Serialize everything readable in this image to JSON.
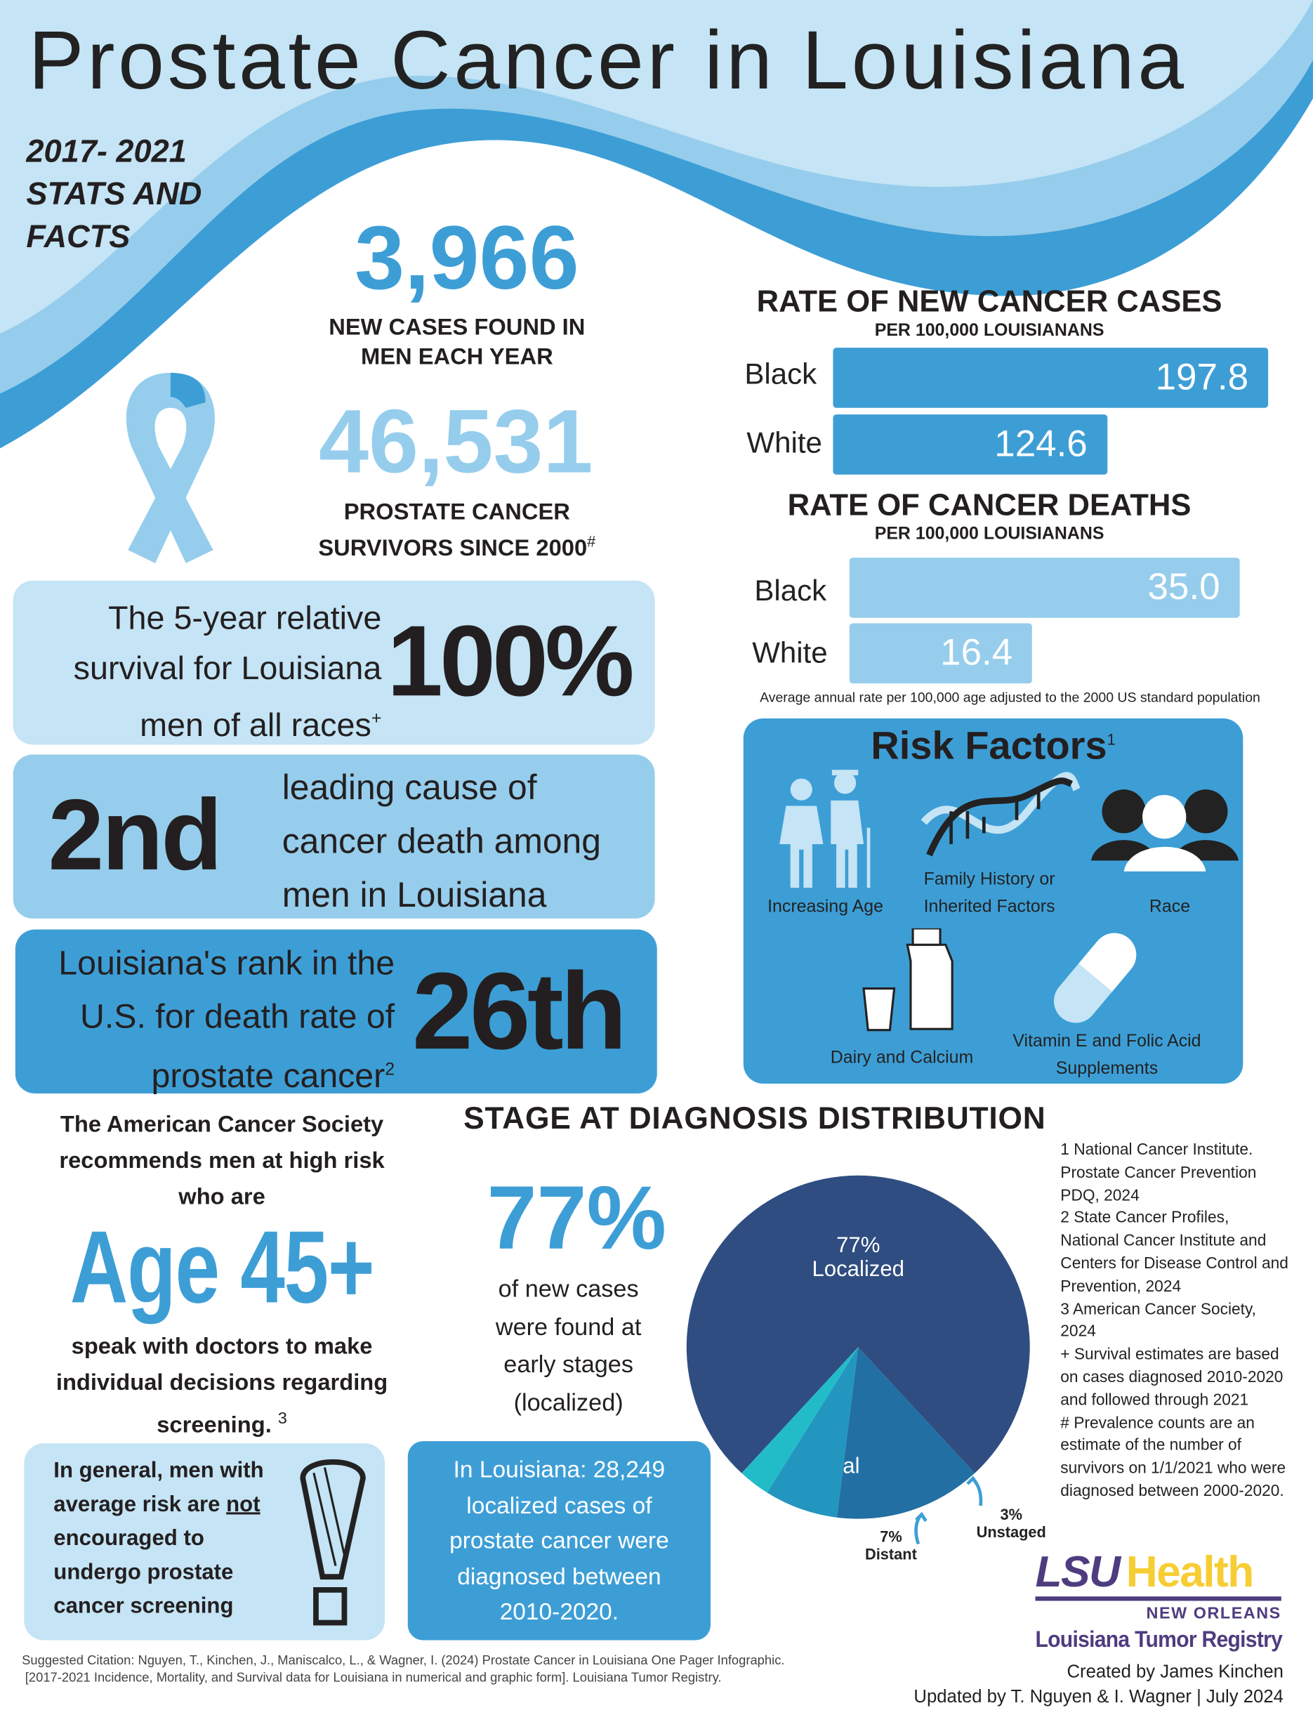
{
  "title": "Prostate Cancer in Louisiana",
  "subtitle_lines": [
    "2017- 2021",
    "STATS AND",
    "FACTS"
  ],
  "new_cases": {
    "value": "3,966",
    "label_lines": [
      "NEW CASES FOUND IN",
      "MEN EACH YEAR"
    ]
  },
  "survivors": {
    "value": "46,531",
    "label_lines": [
      "PROSTATE  CANCER",
      "SURVIVORS SINCE 2000"
    ],
    "mark": "#"
  },
  "rates_new": {
    "title": "RATE OF NEW CANCER CASES",
    "subtitle": "PER 100,000 LOUISIANANS",
    "bars": [
      {
        "label": "Black",
        "value": "197.8"
      },
      {
        "label": "White",
        "value": "124.6"
      }
    ],
    "max": "197.8"
  },
  "rates_death": {
    "title": "RATE OF CANCER DEATHS",
    "subtitle": "PER 100,000 LOUISIANANS",
    "bars": [
      {
        "label": "Black",
        "value": "35.0"
      },
      {
        "label": "White",
        "value": "16.4"
      }
    ],
    "max": "35.0"
  },
  "rate_note": "Average annual rate per 100,000 age adjusted to the 2000 US standard population",
  "survival": {
    "lines": [
      "The 5-year relative",
      "survival for Louisiana",
      "men of all races"
    ],
    "mark": "+",
    "value": "100%"
  },
  "leading": {
    "value": "2nd",
    "lines": [
      "leading cause of",
      "cancer death among",
      "men in Louisiana"
    ]
  },
  "rank": {
    "lines": [
      "Louisiana's rank in the",
      "U.S. for death rate of",
      "prostate cancer"
    ],
    "mark": "2",
    "value": "26th"
  },
  "risk": {
    "title": "Risk Factors",
    "mark": "1",
    "items": [
      {
        "label": "Increasing Age",
        "icon": "elderly-couple-icon"
      },
      {
        "label": "Family History or Inherited Factors",
        "icon": "dna-icon"
      },
      {
        "label": "Race",
        "icon": "people-icon"
      },
      {
        "label": "Dairy and Calcium",
        "icon": "milk-icon"
      },
      {
        "label": "Vitamin E and Folic Acid Supplements",
        "icon": "pill-icon"
      }
    ]
  },
  "acs": {
    "intro_lines": [
      "The American Cancer Society",
      "recommends men at high risk",
      "who are"
    ],
    "age": "Age 45+",
    "outro_lines": [
      "speak with doctors to make",
      "individual decisions regarding",
      "screening."
    ],
    "mark": "3"
  },
  "average_risk": {
    "lines": [
      "In general, men with",
      "average risk are",
      "not",
      "encouraged to",
      "undergo prostate",
      "cancer screening"
    ]
  },
  "localized_box": {
    "lines": [
      "In Louisiana: 28,249",
      "localized cases of",
      "prostate cancer were",
      "diagnosed between",
      "2010-2020."
    ]
  },
  "stage": {
    "title": "STAGE AT DIAGNOSIS DISTRIBUTION",
    "big": "77%",
    "lines": [
      "of new cases",
      "were found at",
      "early stages",
      "(localized)"
    ]
  },
  "chart_data": {
    "type": "pie",
    "title": "STAGE AT DIAGNOSIS DISTRIBUTION",
    "slices": [
      {
        "label": "Localized",
        "pct": "77%",
        "value": 77,
        "color": "#2f4d80"
      },
      {
        "label": "Regional",
        "pct": "14%",
        "value": 14,
        "color": "#226fa3"
      },
      {
        "label": "Distant",
        "pct": "7%",
        "value": 7,
        "color": "#2396c0"
      },
      {
        "label": "Unstaged",
        "pct": "3%",
        "value": 3,
        "color": "#22bcc9"
      }
    ]
  },
  "references": [
    "1 National Cancer Institute. Prostate Cancer Prevention PDQ, 2024",
    "2 State Cancer Profiles, National Cancer Institute and Centers for Disease Control and Prevention, 2024",
    "3 American Cancer Society, 2024",
    "+ Survival estimates are based on cases diagnosed 2010-2020 and followed through 2021",
    "# Prevalence counts are an estimate of the number of survivors on 1/1/2021 who were diagnosed between 2000-2020."
  ],
  "logo": {
    "lsu": "LSU",
    "health": "Health",
    "city": "NEW ORLEANS",
    "registry": "Louisiana Tumor Registry"
  },
  "credits": [
    "Created by James Kinchen",
    "Updated by T. Nguyen & I. Wagner | July 2024"
  ],
  "citation": [
    "Suggested Citation: Nguyen, T., Kinchen, J., Maniscalco, L., & Wagner, I. (2024) Prostate Cancer in Louisiana One Pager Infographic.",
    "[2017-2021 Incidence, Mortality, and Survival data for Louisiana in numerical and graphic form]. Louisiana Tumor Registry."
  ],
  "colors": {
    "light": "#c5e4f5",
    "mid": "#96cdec",
    "dark": "#3d9ed6",
    "navy": "#2f4d80",
    "purple": "#4f3c7f",
    "gold": "#f6cd33"
  }
}
